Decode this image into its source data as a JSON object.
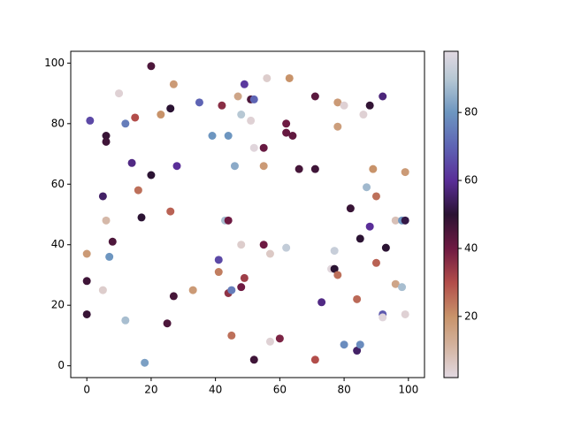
{
  "chart_data": {
    "type": "scatter",
    "x": [
      1,
      0,
      0,
      0,
      5,
      6,
      6,
      5,
      6,
      7,
      8,
      10,
      12,
      12,
      14,
      15,
      16,
      17,
      18,
      20,
      20,
      23,
      25,
      26,
      26,
      27,
      27,
      28,
      33,
      35,
      39,
      41,
      41,
      42,
      43,
      44,
      44,
      44,
      45,
      45,
      46,
      47,
      48,
      48,
      48,
      49,
      49,
      51,
      51,
      52,
      52,
      52,
      55,
      55,
      55,
      56,
      57,
      57,
      60,
      62,
      62,
      62,
      63,
      64,
      66,
      71,
      71,
      71,
      73,
      76,
      77,
      77,
      78,
      78,
      78,
      80,
      80,
      82,
      84,
      84,
      85,
      85,
      86,
      87,
      88,
      88,
      89,
      90,
      90,
      92,
      92,
      92,
      93,
      96,
      96,
      98,
      99,
      98,
      99,
      99
    ],
    "y": [
      81,
      37,
      28,
      17,
      25,
      76,
      74,
      56,
      48,
      36,
      41,
      90,
      80,
      15,
      67,
      82,
      58,
      49,
      1,
      99,
      63,
      83,
      14,
      85,
      51,
      93,
      23,
      66,
      25,
      87,
      76,
      35,
      31,
      86,
      48,
      48,
      76,
      24,
      25,
      10,
      66,
      89,
      83,
      40,
      26,
      93,
      29,
      88,
      81,
      88,
      72,
      2,
      72,
      66,
      40,
      95,
      37,
      8,
      9,
      80,
      77,
      39,
      95,
      76,
      65,
      89,
      65,
      2,
      21,
      32,
      38,
      32,
      87,
      79,
      30,
      86,
      7,
      52,
      22,
      5,
      42,
      7,
      83,
      59,
      86,
      46,
      65,
      56,
      34,
      89,
      17,
      16,
      39,
      27,
      48,
      48,
      48,
      26,
      64,
      17
    ],
    "c": [
      65,
      18,
      47,
      48,
      5,
      48,
      47,
      55,
      10,
      80,
      45,
      4,
      75,
      88,
      58,
      30,
      25,
      50,
      82,
      45,
      50,
      20,
      45,
      50,
      27,
      18,
      46,
      60,
      18,
      70,
      80,
      65,
      23,
      36,
      88,
      40,
      80,
      35,
      75,
      25,
      84,
      15,
      90,
      5,
      40,
      62,
      33,
      45,
      4,
      70,
      3,
      47,
      41,
      18,
      40,
      5,
      6,
      4,
      38,
      40,
      41,
      92,
      20,
      42,
      46,
      43,
      47,
      30,
      58,
      3,
      93,
      50,
      18,
      17,
      25,
      4,
      78,
      48,
      26,
      55,
      50,
      78,
      4,
      87,
      49,
      60,
      20,
      25,
      27,
      57,
      68,
      3,
      50,
      15,
      8,
      80,
      52,
      88,
      18,
      4
    ],
    "xlim": [
      -5,
      105
    ],
    "ylim": [
      -3.9,
      103.9
    ],
    "xticks": [
      0,
      20,
      40,
      60,
      80,
      100
    ],
    "yticks": [
      0,
      20,
      40,
      60,
      80,
      100
    ],
    "clim": [
      2,
      98
    ],
    "cticks": [
      20,
      40,
      60,
      80
    ],
    "colormap": [
      [
        2,
        "#e2d9e2"
      ],
      [
        12,
        "#d2b09a"
      ],
      [
        20,
        "#c8936a"
      ],
      [
        30,
        "#b24d4a"
      ],
      [
        40,
        "#6e1a42"
      ],
      [
        50,
        "#2b1333"
      ],
      [
        60,
        "#5a2e98"
      ],
      [
        70,
        "#5e64b4"
      ],
      [
        80,
        "#6d96c0"
      ],
      [
        90,
        "#b7c8d4"
      ],
      [
        98,
        "#e2d9e2"
      ]
    ]
  }
}
